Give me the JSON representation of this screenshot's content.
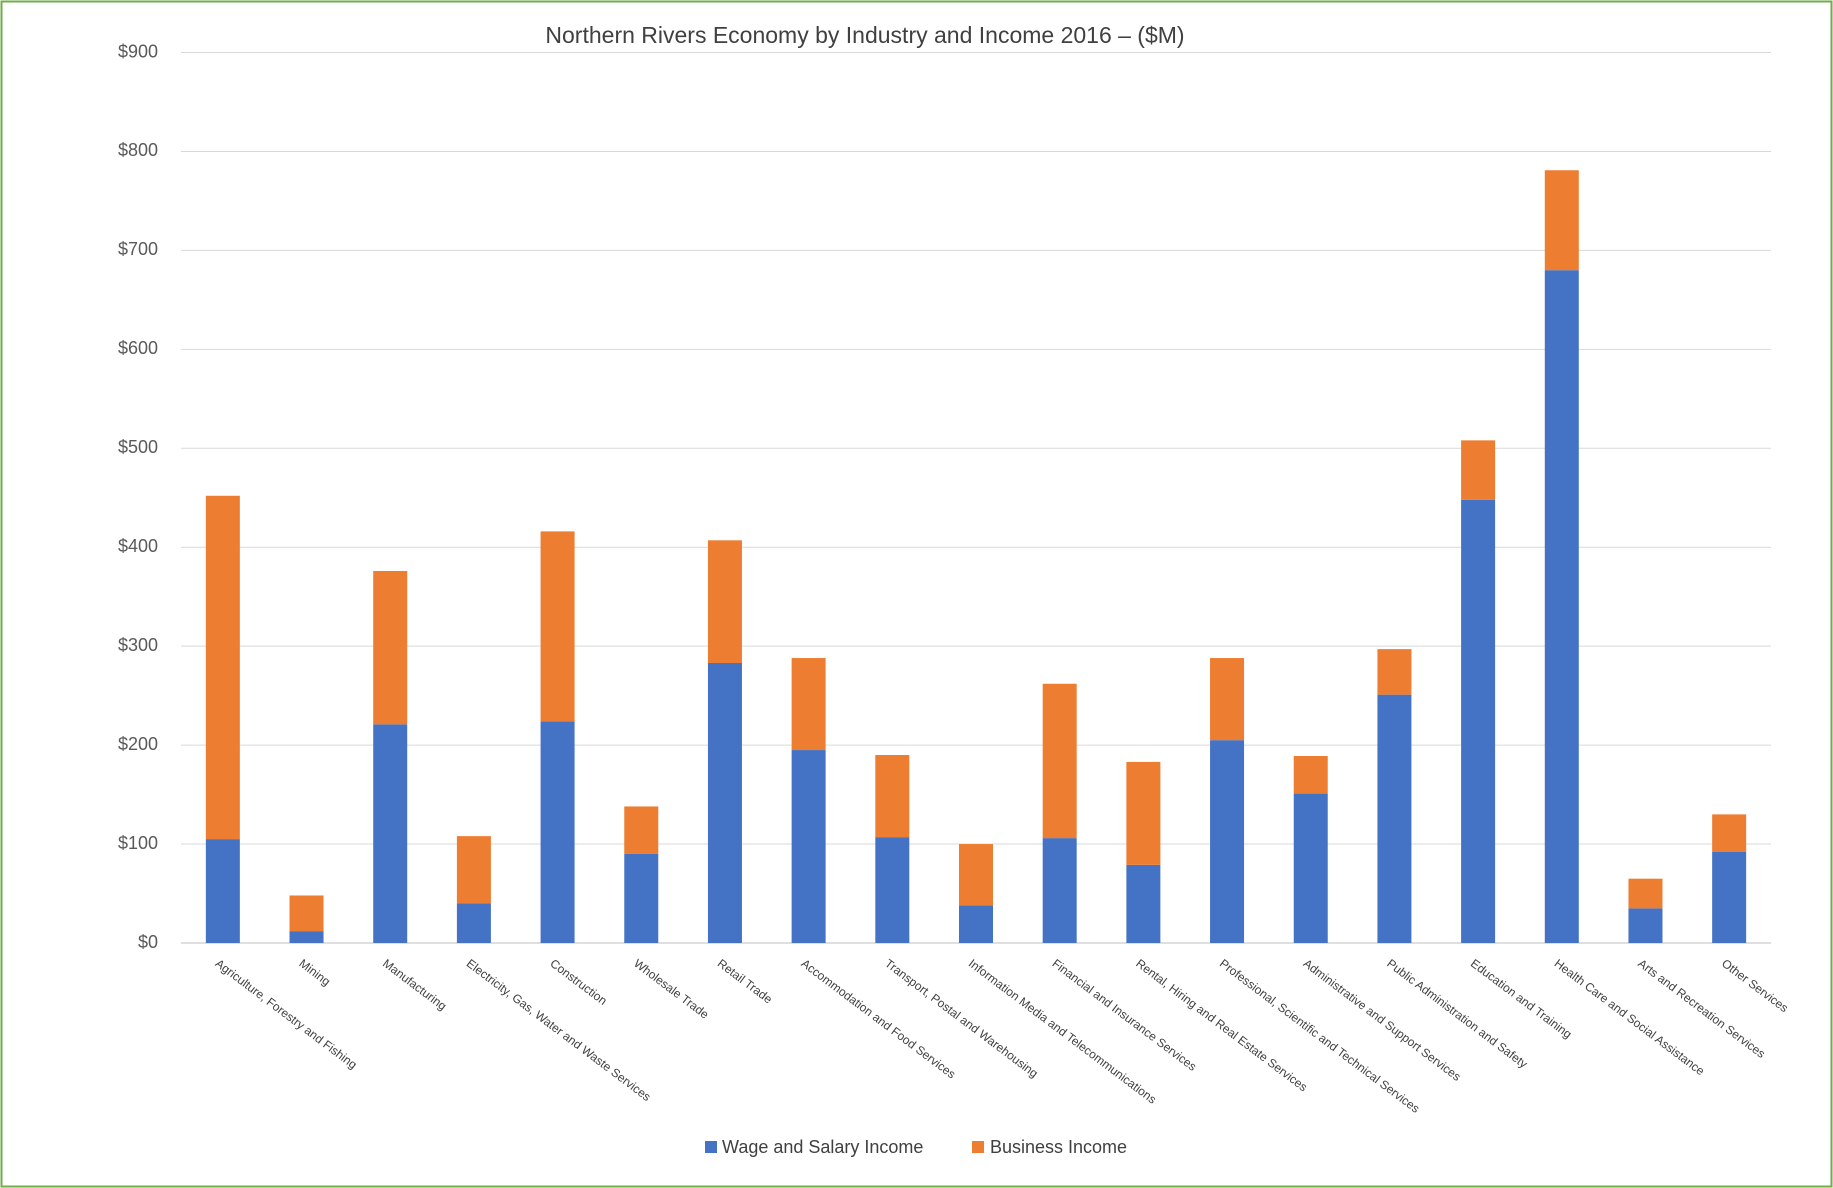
{
  "chart_data": {
    "type": "bar",
    "stacked": true,
    "title": "Northern Rivers Economy by Industry and Income 2016 – ($M)",
    "categories": [
      "Agriculture, Forestry and Fishing",
      "Mining",
      "Manufacturing",
      "Electricity, Gas, Water and Waste Services",
      "Construction",
      "Wholesale Trade",
      "Retail Trade",
      "Accommodation and Food Services",
      "Transport, Postal and Warehousing",
      "Information Media and Telecommunications",
      "Financial and Insurance Services",
      "Rental, Hiring and Real Estate Services",
      "Professional, Scientific and Technical Services",
      "Administrative and Support Services",
      "Public Administration and Safety",
      "Education and Training",
      "Health Care and Social Assistance",
      "Arts and Recreation Services",
      "Other Services"
    ],
    "series": [
      {
        "name": "Wage and Salary Income",
        "color": "#4472C4",
        "values": [
          105,
          12,
          221,
          40,
          224,
          90,
          283,
          195,
          107,
          38,
          106,
          79,
          205,
          151,
          251,
          448,
          680,
          35,
          92
        ]
      },
      {
        "name": "Business Income",
        "color": "#ED7D31",
        "values": [
          347,
          36,
          155,
          68,
          192,
          48,
          124,
          93,
          83,
          62,
          156,
          104,
          83,
          38,
          46,
          60,
          101,
          30,
          38
        ]
      }
    ],
    "ylim": [
      0,
      900
    ],
    "y_ticks": [
      {
        "value": 0,
        "label": "$0"
      },
      {
        "value": 100,
        "label": "$100"
      },
      {
        "value": 200,
        "label": "$200"
      },
      {
        "value": 300,
        "label": "$300"
      },
      {
        "value": 400,
        "label": "$400"
      },
      {
        "value": 500,
        "label": "$500"
      },
      {
        "value": 600,
        "label": "$600"
      },
      {
        "value": 700,
        "label": "$700"
      },
      {
        "value": 800,
        "label": "$800"
      },
      {
        "value": 900,
        "label": "$900"
      }
    ],
    "grid": true,
    "legend": "bottom"
  },
  "colors": {
    "border": "#70AD47",
    "grid": "#D9D9D9",
    "text": "#595959"
  }
}
